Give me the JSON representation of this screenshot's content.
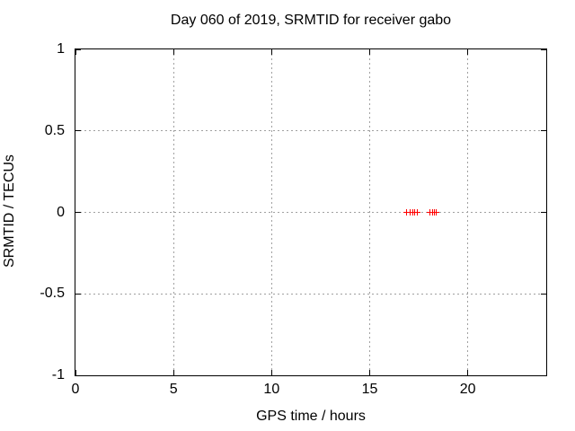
{
  "title": "Day 060 of 2019, SRMTID for receiver gabo",
  "chart_data": {
    "type": "scatter",
    "title": "Day 060 of 2019, SRMTID for receiver gabo",
    "xlabel": "GPS time / hours",
    "ylabel": "SRMTID / TECUs",
    "xlim": [
      0,
      24
    ],
    "ylim": [
      -1,
      1
    ],
    "xticks": [
      0,
      5,
      10,
      15,
      20
    ],
    "yticks": [
      -1,
      -0.5,
      0,
      0.5,
      1
    ],
    "grid": true,
    "legend": false,
    "marker": "plus",
    "series": [
      {
        "name": "SRMTID",
        "color": "#ff0000",
        "x": [
          16.9,
          17.04,
          17.18,
          17.31,
          17.45,
          18.09,
          18.19,
          18.28,
          18.37
        ],
        "y": [
          0,
          0,
          0,
          0,
          0,
          0,
          0,
          0,
          0
        ]
      }
    ]
  },
  "colors": {
    "background": "#ffffff",
    "border": "#000000",
    "grid": "#a0a0a0",
    "text": "#000000",
    "marker": "#ff0000"
  }
}
